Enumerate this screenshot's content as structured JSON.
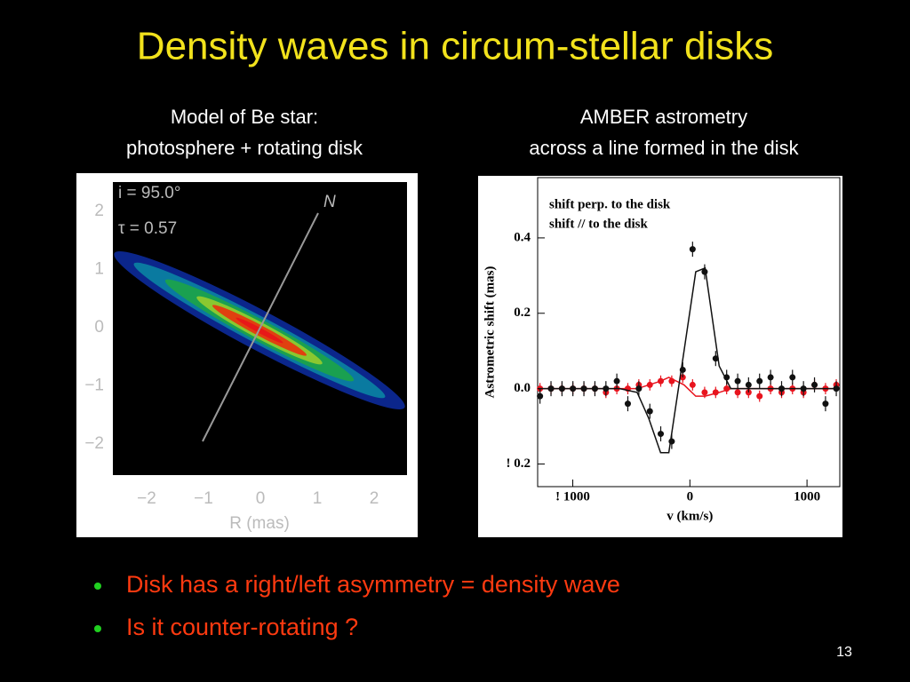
{
  "title": "Density waves in circum-stellar disks",
  "left_panel": {
    "caption": [
      "Model of Be star:",
      "photosphere + rotating disk"
    ],
    "annotations": [
      "i = 95.0°",
      "τ = 0.57",
      "N"
    ],
    "yticks": [
      "2",
      "1",
      "0",
      "−1",
      "−2"
    ],
    "xticks": [
      "−2",
      "−1",
      "0",
      "1",
      "2"
    ],
    "xlabel": "R (mas)"
  },
  "right_panel": {
    "caption": [
      "AMBER astrometry",
      "across a line formed in the disk"
    ]
  },
  "chart_data": {
    "type": "scatter",
    "xlabel": "v (km/s)",
    "ylabel": "Astrometric shift (mas)",
    "xlim": [
      -1300,
      1280
    ],
    "ylim": [
      -0.26,
      0.56
    ],
    "xticks": [
      {
        "value": -1000,
        "label": "! 1000"
      },
      0,
      1000
    ],
    "yticks": [
      0.4,
      0.2,
      {
        "value": 0,
        "label": "0.0"
      },
      {
        "value": -0.2,
        "label": "! 0.2"
      }
    ],
    "x": [
      -1280,
      -1186,
      -1092,
      -999,
      -905,
      -811,
      -717,
      -624,
      -530,
      -436,
      -342,
      -249,
      -155,
      -61,
      23,
      126,
      220,
      314,
      408,
      501,
      595,
      689,
      783,
      876,
      970,
      1064,
      1158,
      1250
    ],
    "model_x": [
      -1300,
      -600,
      -450,
      -350,
      -250,
      -180,
      -50,
      50,
      130,
      250,
      350,
      1280
    ],
    "series": [
      {
        "name": "shift perp. to the disk",
        "color": "#e8141e",
        "values": [
          0,
          0,
          0,
          0,
          0,
          0,
          -0.01,
          0,
          0,
          0.01,
          0.01,
          0.02,
          0.02,
          0.03,
          0.01,
          -0.01,
          -0.01,
          0,
          -0.01,
          -0.01,
          -0.02,
          0,
          -0.01,
          0,
          -0.01,
          0.01,
          0,
          0.01
        ],
        "errors": [
          0.015,
          0.015,
          0.015,
          0.015,
          0.015,
          0.015,
          0.015,
          0.015,
          0.015,
          0.015,
          0.015,
          0.015,
          0.015,
          0.015,
          0.015,
          0.015,
          0.015,
          0.015,
          0.015,
          0.015,
          0.015,
          0.015,
          0.015,
          0.015,
          0.015,
          0.015,
          0.015,
          0.015
        ],
        "model_values": [
          0,
          0,
          0,
          0.01,
          0.02,
          0.03,
          0.01,
          -0.02,
          -0.02,
          -0.01,
          0,
          0
        ]
      },
      {
        "name": "shift // to the disk",
        "color": "#111111",
        "values": [
          -0.02,
          0,
          0,
          0,
          0,
          0,
          0,
          0.02,
          -0.04,
          0,
          -0.06,
          -0.12,
          -0.14,
          0.05,
          0.37,
          0.31,
          0.08,
          0.03,
          0.02,
          0.01,
          0.02,
          0.03,
          0,
          0.03,
          0,
          0.01,
          -0.04,
          0
        ],
        "errors": [
          0.02,
          0.02,
          0.02,
          0.02,
          0.02,
          0.02,
          0.02,
          0.02,
          0.02,
          0.02,
          0.02,
          0.02,
          0.02,
          0.02,
          0.02,
          0.02,
          0.02,
          0.02,
          0.02,
          0.02,
          0.02,
          0.02,
          0.02,
          0.02,
          0.02,
          0.02,
          0.02,
          0.02
        ],
        "model_values": [
          0,
          0,
          -0.01,
          -0.08,
          -0.17,
          -0.17,
          0.1,
          0.31,
          0.32,
          0.06,
          0,
          0
        ]
      }
    ]
  },
  "bullets": [
    "Disk has a right/left asymmetry = density wave",
    "Is it counter-rotating ?"
  ],
  "page_number": "13"
}
